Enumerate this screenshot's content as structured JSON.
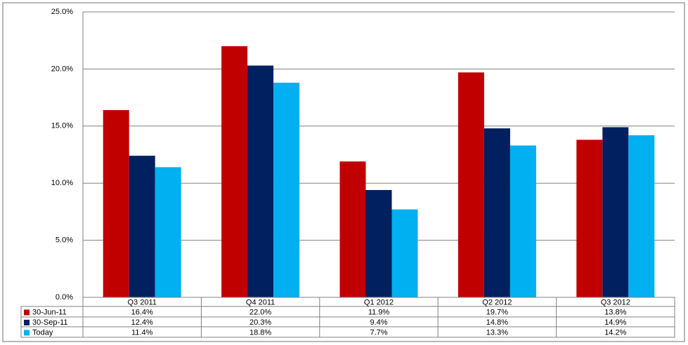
{
  "chart_data": {
    "type": "bar",
    "categories": [
      "Q3 2011",
      "Q4 2011",
      "Q1 2012",
      "Q2 2012",
      "Q3 2012"
    ],
    "series": [
      {
        "name": "30-Jun-11",
        "color": "#c00000",
        "values": [
          16.4,
          22.0,
          11.9,
          19.7,
          13.8
        ],
        "value_labels": [
          "16.4%",
          "22.0%",
          "11.9%",
          "19.7%",
          "13.8%"
        ]
      },
      {
        "name": "30-Sep-11",
        "color": "#002060",
        "values": [
          12.4,
          20.3,
          9.4,
          14.8,
          14.9
        ],
        "value_labels": [
          "12.4%",
          "20.3%",
          "9.4%",
          "14.8%",
          "14.9%"
        ]
      },
      {
        "name": "Today",
        "color": "#00b0f0",
        "values": [
          11.4,
          18.8,
          7.7,
          13.3,
          14.2
        ],
        "value_labels": [
          "11.4%",
          "18.8%",
          "7.7%",
          "13.3%",
          "14.2%"
        ]
      }
    ],
    "ylim": [
      0,
      25
    ],
    "yticks": [
      {
        "value": 0,
        "label": "0.0%"
      },
      {
        "value": 5,
        "label": "5.0%"
      },
      {
        "value": 10,
        "label": "10.0%"
      },
      {
        "value": 15,
        "label": "15.0%"
      },
      {
        "value": 20,
        "label": "20.0%"
      },
      {
        "value": 25,
        "label": "25.0%"
      }
    ],
    "grid": true
  }
}
